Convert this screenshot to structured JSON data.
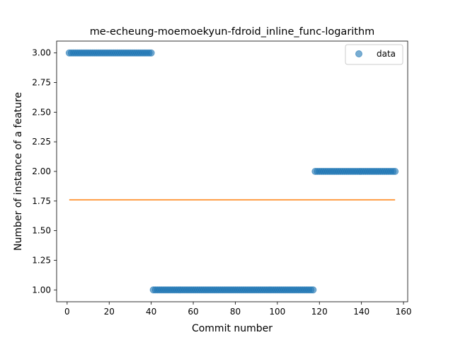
{
  "chart_data": {
    "type": "scatter",
    "title": "me-echeung-moemoekyun-fdroid_inline_func-logarithm",
    "xlabel": "Commit number",
    "ylabel": "Number of instance of a feature",
    "xlim": [
      -5,
      162
    ],
    "ylim": [
      0.9,
      3.1
    ],
    "x_ticks": [
      0,
      20,
      40,
      60,
      80,
      100,
      120,
      140,
      160
    ],
    "y_ticks": [
      1.0,
      1.25,
      1.5,
      1.75,
      2.0,
      2.25,
      2.5,
      2.75,
      3.0
    ],
    "x_tick_labels": [
      "0",
      "20",
      "40",
      "60",
      "80",
      "100",
      "120",
      "140",
      "160"
    ],
    "y_tick_labels": [
      "1.00",
      "1.25",
      "1.50",
      "1.75",
      "2.00",
      "2.25",
      "2.50",
      "2.75",
      "3.00"
    ],
    "grid": false,
    "legend": {
      "placement": "top-right",
      "entries": [
        "data"
      ]
    },
    "series": [
      {
        "name": "data",
        "kind": "scatter",
        "color": "#1f77b4",
        "segments": [
          {
            "x_start": 1,
            "x_end": 40,
            "y": 3
          },
          {
            "x_start": 41,
            "x_end": 117,
            "y": 1
          },
          {
            "x_start": 118,
            "x_end": 156,
            "y": 2
          }
        ]
      },
      {
        "kind": "line",
        "color": "#ff7f0e",
        "x": [
          1,
          156
        ],
        "y": [
          1.76,
          1.76
        ]
      }
    ]
  }
}
